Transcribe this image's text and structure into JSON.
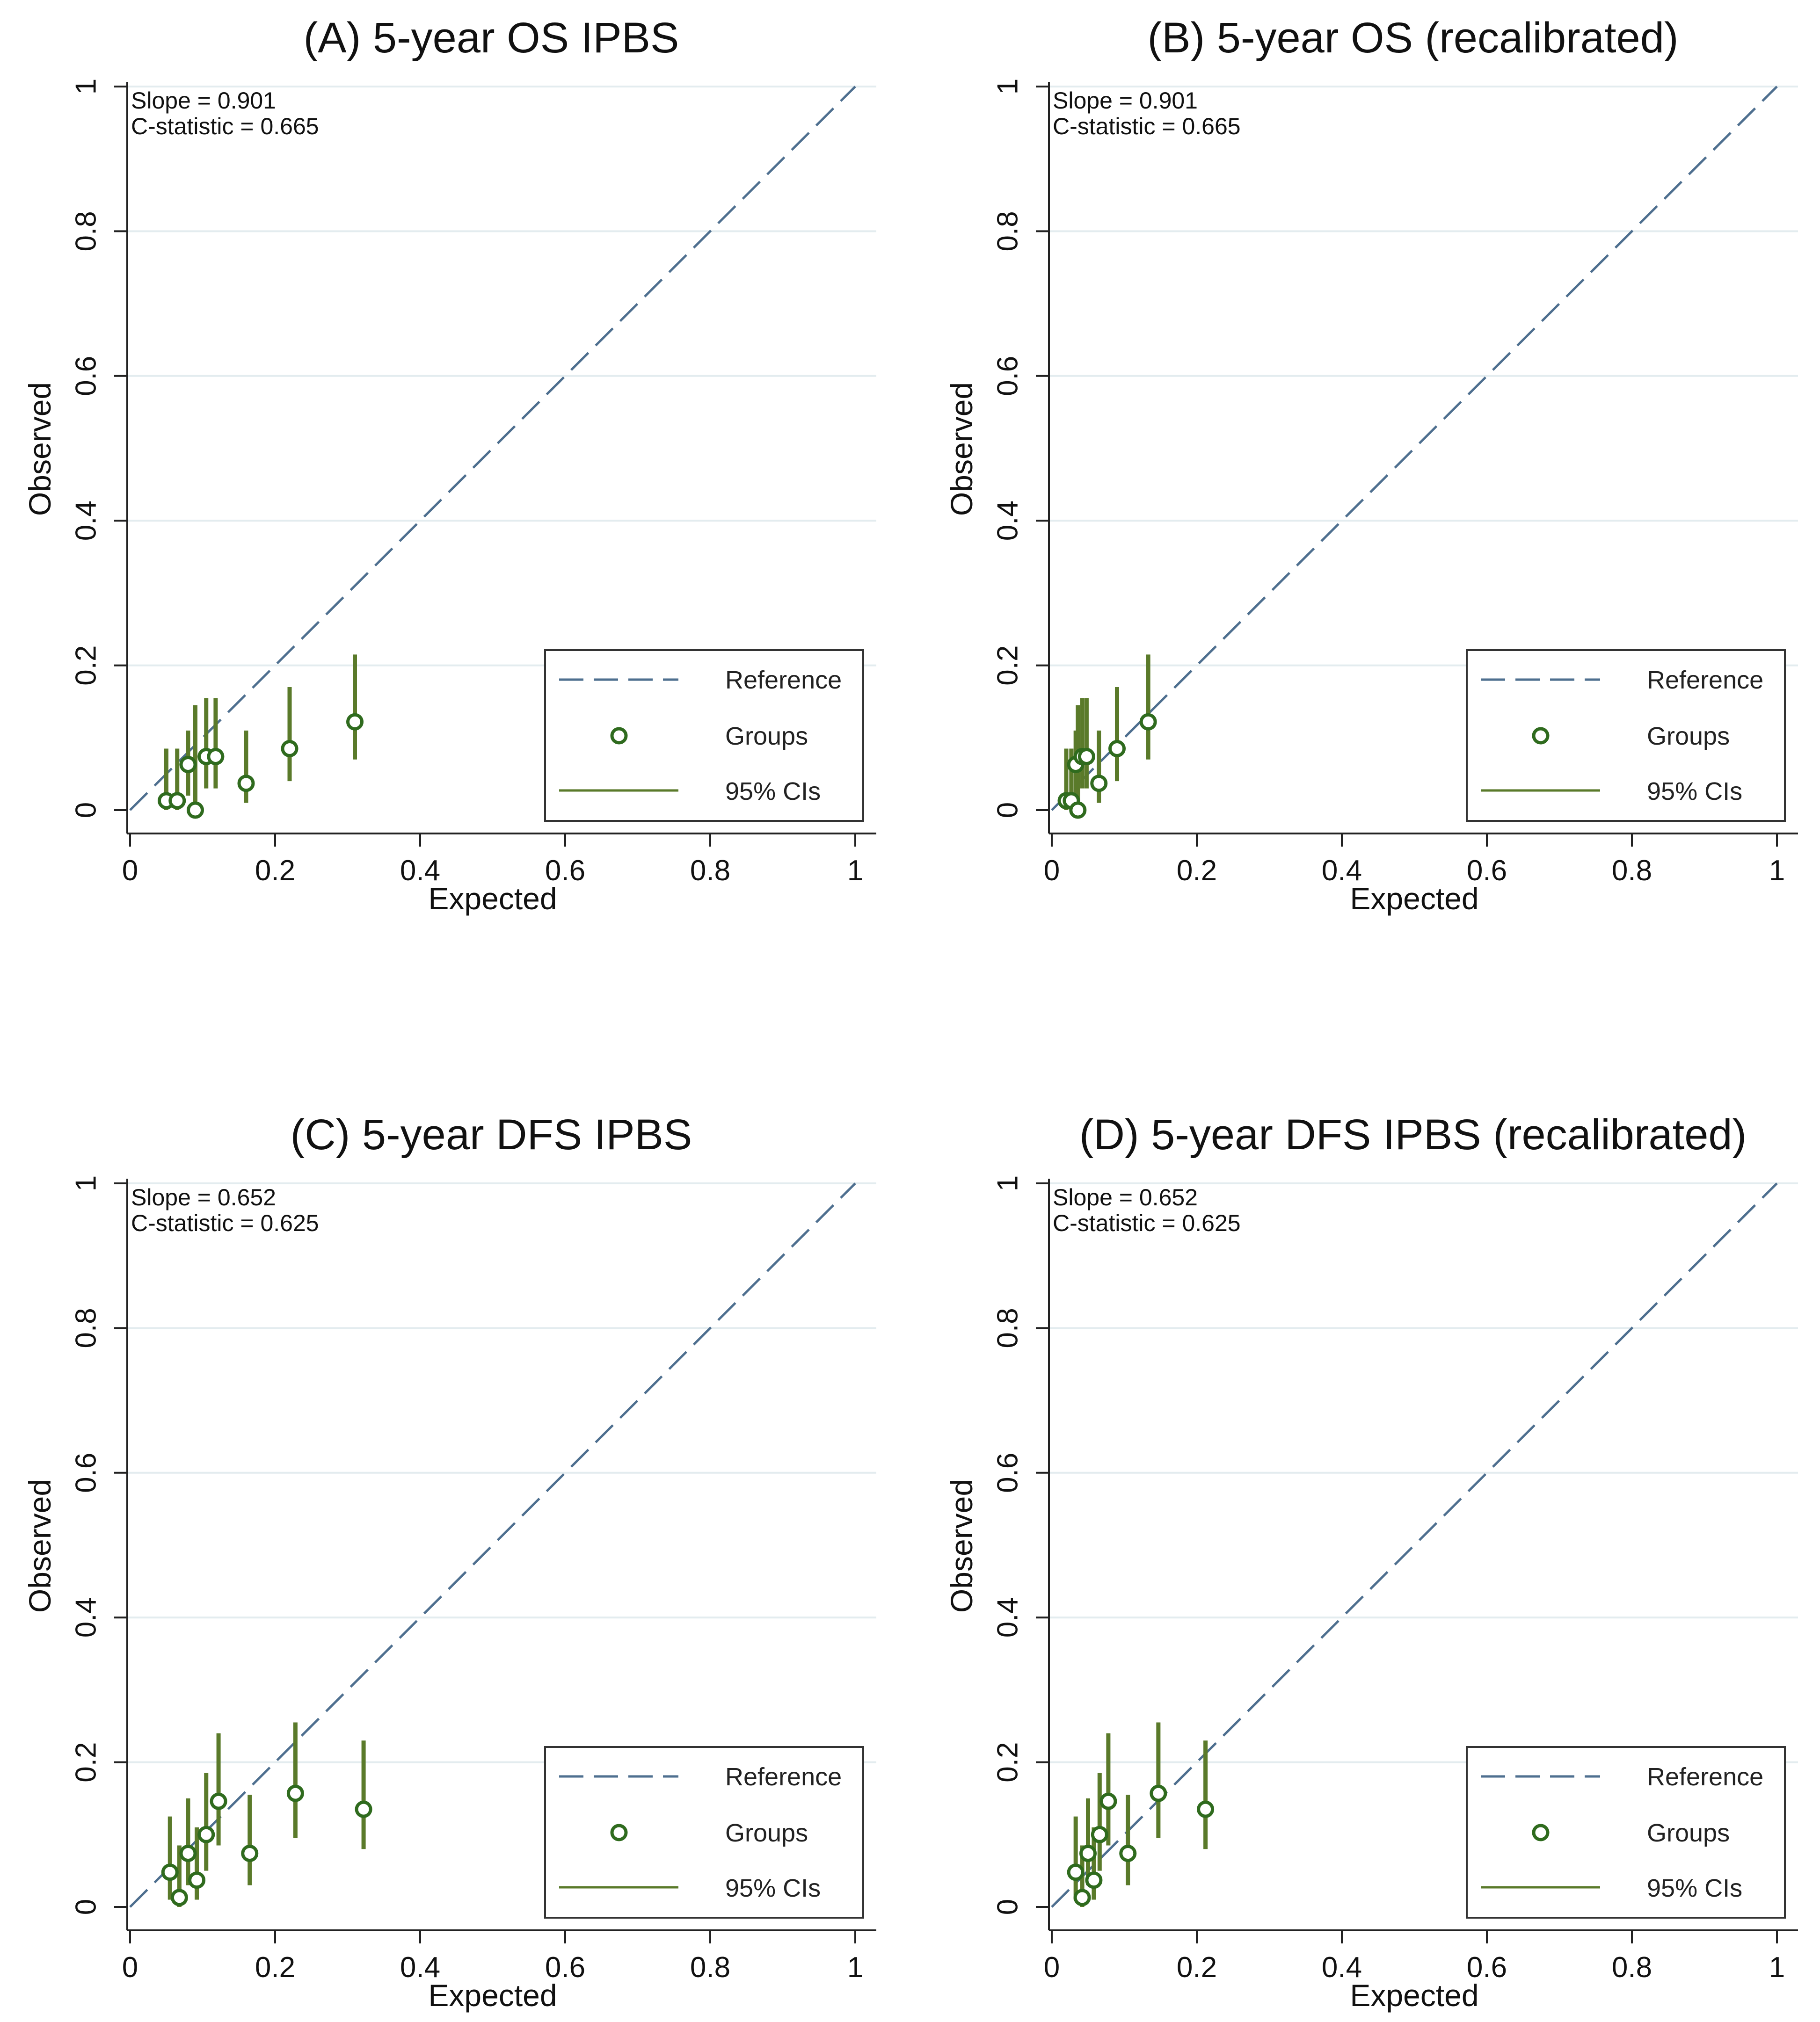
{
  "colors": {
    "reference": "#4e6f8f",
    "groups": "#2f6b1e",
    "ci": "#5a7a2a",
    "grid": "#e3ecef",
    "axis": "#222222"
  },
  "legend": {
    "reference": "Reference",
    "groups": "Groups",
    "ci": "95% CIs"
  },
  "chart_data": [
    {
      "type": "scatter",
      "title": "(A) 5-year OS IPBS",
      "xlabel": "Expected",
      "ylabel": "Observed",
      "xlim": [
        0,
        1
      ],
      "ylim": [
        0,
        1
      ],
      "xticks": [
        "0",
        "0.2",
        "0.4",
        "0.6",
        "0.8",
        "1"
      ],
      "yticks": [
        "0",
        "0.2",
        "0.4",
        "0.6",
        "0.8",
        "1"
      ],
      "grid": true,
      "legend_position": "bottom-right",
      "slope_text": "Slope = 0.901",
      "cstat_text": "C-statistic = 0.665",
      "groups": [
        {
          "x": 0.05,
          "y": 0.013,
          "lo": 0.0,
          "hi": 0.085
        },
        {
          "x": 0.065,
          "y": 0.013,
          "lo": 0.0,
          "hi": 0.085
        },
        {
          "x": 0.08,
          "y": 0.063,
          "lo": 0.02,
          "hi": 0.11
        },
        {
          "x": 0.09,
          "y": 0.0,
          "lo": 0.0,
          "hi": 0.145
        },
        {
          "x": 0.105,
          "y": 0.074,
          "lo": 0.03,
          "hi": 0.155
        },
        {
          "x": 0.118,
          "y": 0.074,
          "lo": 0.03,
          "hi": 0.155
        },
        {
          "x": 0.16,
          "y": 0.037,
          "lo": 0.01,
          "hi": 0.11
        },
        {
          "x": 0.22,
          "y": 0.085,
          "lo": 0.04,
          "hi": 0.17
        },
        {
          "x": 0.31,
          "y": 0.122,
          "lo": 0.07,
          "hi": 0.215
        }
      ]
    },
    {
      "type": "scatter",
      "title": "(B) 5-year OS (recalibrated)",
      "xlabel": "Expected",
      "ylabel": "Observed",
      "xlim": [
        0,
        1
      ],
      "ylim": [
        0,
        1
      ],
      "xticks": [
        "0",
        "0.2",
        "0.4",
        "0.6",
        "0.8",
        "1"
      ],
      "yticks": [
        "0",
        "0.2",
        "0.4",
        "0.6",
        "0.8",
        "1"
      ],
      "grid": true,
      "legend_position": "bottom-right",
      "slope_text": "Slope = 0.901",
      "cstat_text": "C-statistic = 0.665",
      "groups": [
        {
          "x": 0.02,
          "y": 0.013,
          "lo": 0.0,
          "hi": 0.085
        },
        {
          "x": 0.027,
          "y": 0.013,
          "lo": 0.0,
          "hi": 0.085
        },
        {
          "x": 0.033,
          "y": 0.063,
          "lo": 0.02,
          "hi": 0.11
        },
        {
          "x": 0.036,
          "y": 0.0,
          "lo": 0.0,
          "hi": 0.145
        },
        {
          "x": 0.042,
          "y": 0.074,
          "lo": 0.03,
          "hi": 0.155
        },
        {
          "x": 0.048,
          "y": 0.074,
          "lo": 0.03,
          "hi": 0.155
        },
        {
          "x": 0.065,
          "y": 0.037,
          "lo": 0.01,
          "hi": 0.11
        },
        {
          "x": 0.09,
          "y": 0.085,
          "lo": 0.04,
          "hi": 0.17
        },
        {
          "x": 0.133,
          "y": 0.122,
          "lo": 0.07,
          "hi": 0.215
        }
      ]
    },
    {
      "type": "scatter",
      "title": "(C) 5-year DFS IPBS",
      "xlabel": "Expected",
      "ylabel": "Observed",
      "xlim": [
        0,
        1
      ],
      "ylim": [
        0,
        1
      ],
      "xticks": [
        "0",
        "0.2",
        "0.4",
        "0.6",
        "0.8",
        "1"
      ],
      "yticks": [
        "0",
        "0.2",
        "0.4",
        "0.6",
        "0.8",
        "1"
      ],
      "grid": true,
      "legend_position": "bottom-right",
      "slope_text": "Slope = 0.652",
      "cstat_text": "C-statistic = 0.625",
      "groups": [
        {
          "x": 0.055,
          "y": 0.048,
          "lo": 0.01,
          "hi": 0.125
        },
        {
          "x": 0.068,
          "y": 0.013,
          "lo": 0.0,
          "hi": 0.085
        },
        {
          "x": 0.08,
          "y": 0.074,
          "lo": 0.03,
          "hi": 0.15
        },
        {
          "x": 0.092,
          "y": 0.037,
          "lo": 0.01,
          "hi": 0.11
        },
        {
          "x": 0.105,
          "y": 0.1,
          "lo": 0.05,
          "hi": 0.185
        },
        {
          "x": 0.122,
          "y": 0.146,
          "lo": 0.085,
          "hi": 0.24
        },
        {
          "x": 0.165,
          "y": 0.074,
          "lo": 0.03,
          "hi": 0.155
        },
        {
          "x": 0.228,
          "y": 0.157,
          "lo": 0.095,
          "hi": 0.255
        },
        {
          "x": 0.322,
          "y": 0.135,
          "lo": 0.08,
          "hi": 0.23
        }
      ]
    },
    {
      "type": "scatter",
      "title": "(D) 5-year DFS IPBS (recalibrated)",
      "xlabel": "Expected",
      "ylabel": "Observed",
      "xlim": [
        0,
        1
      ],
      "ylim": [
        0,
        1
      ],
      "xticks": [
        "0",
        "0.2",
        "0.4",
        "0.6",
        "0.8",
        "1"
      ],
      "yticks": [
        "0",
        "0.2",
        "0.4",
        "0.6",
        "0.8",
        "1"
      ],
      "grid": true,
      "legend_position": "bottom-right",
      "slope_text": "Slope = 0.652",
      "cstat_text": "C-statistic = 0.625",
      "groups": [
        {
          "x": 0.033,
          "y": 0.048,
          "lo": 0.01,
          "hi": 0.125
        },
        {
          "x": 0.042,
          "y": 0.013,
          "lo": 0.0,
          "hi": 0.085
        },
        {
          "x": 0.05,
          "y": 0.074,
          "lo": 0.03,
          "hi": 0.15
        },
        {
          "x": 0.058,
          "y": 0.037,
          "lo": 0.01,
          "hi": 0.11
        },
        {
          "x": 0.066,
          "y": 0.1,
          "lo": 0.05,
          "hi": 0.185
        },
        {
          "x": 0.078,
          "y": 0.146,
          "lo": 0.085,
          "hi": 0.24
        },
        {
          "x": 0.105,
          "y": 0.074,
          "lo": 0.03,
          "hi": 0.155
        },
        {
          "x": 0.147,
          "y": 0.157,
          "lo": 0.095,
          "hi": 0.255
        },
        {
          "x": 0.212,
          "y": 0.135,
          "lo": 0.08,
          "hi": 0.23
        }
      ]
    }
  ]
}
